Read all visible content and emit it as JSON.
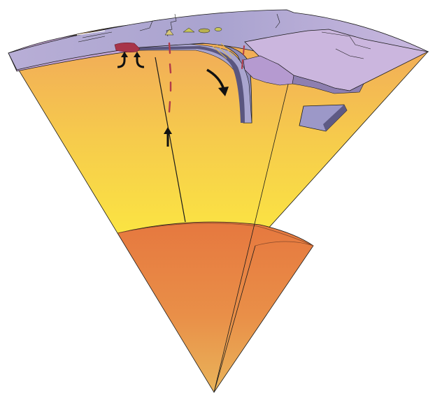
{
  "diagram": {
    "title": "",
    "labels": [],
    "arrows": [
      {
        "name": "mantle-plume-rise-arrow",
        "meaning": "upwelling"
      },
      {
        "name": "ridge-upwelling-arrow-left",
        "meaning": "upwelling"
      },
      {
        "name": "ridge-upwelling-arrow-right",
        "meaning": "upwelling"
      },
      {
        "name": "subduction-arrow",
        "meaning": "slab sinking"
      }
    ],
    "colors": {
      "mantle_top": "#f0a35c",
      "mantle_bottom": "#fbe542",
      "outer_core": "#e87a3e",
      "inner_core_bottom": "#e8b056",
      "oceanic_crust": "#8f8db8",
      "continental_crust": "#c7a7d6",
      "crust_surface": "#b3aad3",
      "magma": "#a8344a",
      "outline": "#1a1a1a"
    }
  }
}
